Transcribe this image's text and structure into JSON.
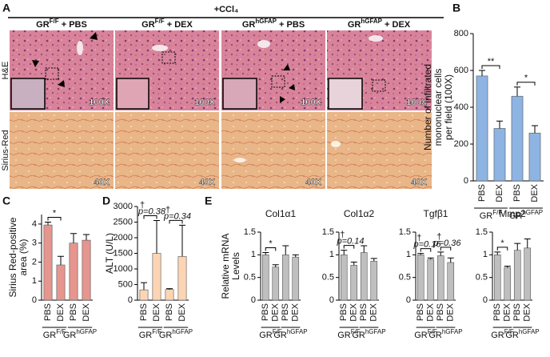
{
  "panels": [
    "A",
    "B",
    "C",
    "D",
    "E"
  ],
  "panel_a": {
    "treatment": "+CCl₄",
    "columns": [
      {
        "base": "GR",
        "sup": "F/F",
        "rest": " + PBS"
      },
      {
        "base": "GR",
        "sup": "F/F",
        "rest": " + DEX"
      },
      {
        "base": "GR",
        "sup": "hGFAP",
        "rest": " + PBS"
      },
      {
        "base": "GR",
        "sup": "hGFAP",
        "rest": " + DEX"
      }
    ],
    "rows": [
      "H&E",
      "Sirius-Red"
    ],
    "magnifications": [
      [
        "100X",
        "100X",
        "100X",
        "100X"
      ],
      [
        "40X",
        "40X",
        "40X",
        "40X"
      ]
    ]
  },
  "chart_data": [
    {
      "type": "bar",
      "ylabel": [
        "Number of infiltrated",
        "mononuclear cells",
        "per field (100X)"
      ],
      "categories": [
        "PBS",
        "DEX",
        "PBS",
        "DEX"
      ],
      "groups": [
        {
          "base": "GR",
          "sup": "F/F"
        },
        {
          "base": "GR",
          "sup": "hGFAP"
        }
      ],
      "values": [
        570,
        285,
        460,
        260
      ],
      "errors": [
        30,
        40,
        50,
        40
      ],
      "color": "#8db4e2",
      "ylim": [
        0,
        800
      ],
      "yticks": [
        0,
        200,
        400,
        600,
        800
      ],
      "annotations": [
        {
          "text": "**"
        },
        {
          "text": "*"
        }
      ]
    },
    {
      "type": "bar",
      "ylabel": [
        "Sirius Red-positive",
        "area (%)"
      ],
      "categories": [
        "PBS",
        "DEX",
        "PBS",
        "DEX"
      ],
      "groups": [
        {
          "base": "GR",
          "sup": "F/F"
        },
        {
          "base": "GR",
          "sup": "hGFAP"
        }
      ],
      "values": [
        3.95,
        1.85,
        3.0,
        3.15
      ],
      "errors": [
        0.15,
        0.45,
        0.5,
        0.3
      ],
      "color": "#e6968e",
      "ylim": [
        0,
        4.5
      ],
      "yticks": [
        0,
        1,
        2,
        3,
        4
      ],
      "annotations": [
        {
          "text": "*"
        },
        null
      ]
    },
    {
      "type": "bar",
      "ylabel": [
        "ALT (U/L)"
      ],
      "categories": [
        "PBS",
        "DEX",
        "PBS",
        "DEX"
      ],
      "groups": [
        {
          "base": "GR",
          "sup": "F/F"
        },
        {
          "base": "GR",
          "sup": "hGFAP"
        }
      ],
      "values": [
        330,
        1500,
        340,
        1400
      ],
      "errors": [
        230,
        1050,
        30,
        1000
      ],
      "color": "#fcd5b4",
      "ylim": [
        0,
        3000
      ],
      "yticks": [
        0,
        500,
        1000,
        1500,
        2000,
        2500,
        3000
      ],
      "annotations": [
        {
          "dagger": "†",
          "p": "p=0.38"
        },
        {
          "dagger": "†",
          "p": "p=0.34"
        }
      ]
    },
    {
      "type": "bar",
      "title": "Col1α1",
      "ylabel": [
        "Relative mRNA",
        "Levels"
      ],
      "categories": [
        "PBS",
        "DEX",
        "PBS",
        "DEX"
      ],
      "groups": [
        {
          "base": "GR",
          "sup": "F/F"
        },
        {
          "base": "GR",
          "sup": "hGFAP"
        }
      ],
      "values": [
        1.0,
        0.73,
        1.0,
        0.95
      ],
      "errors": [
        0.05,
        0.05,
        0.2,
        0.05
      ],
      "color": "#bfbfbf",
      "ylim": [
        0,
        1.5
      ],
      "yticks": [
        0,
        0.5,
        1,
        1.5
      ],
      "annotations": [
        {
          "text": "*"
        },
        null
      ]
    },
    {
      "type": "bar",
      "title": "Col1α2",
      "categories": [
        "PBS",
        "DEX",
        "PBS",
        "DEX"
      ],
      "groups": [
        {
          "base": "GR",
          "sup": "F/F"
        },
        {
          "base": "GR",
          "sup": "hGFAP"
        }
      ],
      "values": [
        1.0,
        0.77,
        1.05,
        0.86
      ],
      "errors": [
        0.1,
        0.07,
        0.15,
        0.06
      ],
      "color": "#bfbfbf",
      "ylim": [
        0,
        1.5
      ],
      "yticks": [
        0,
        0.5,
        1,
        1.5
      ],
      "annotations": [
        {
          "dagger": "†",
          "p": "p=0.14"
        },
        null
      ]
    },
    {
      "type": "bar",
      "title": "Tgfβ1",
      "categories": [
        "PBS",
        "DEX",
        "PBS",
        "DEX"
      ],
      "groups": [
        {
          "base": "GR",
          "sup": "F/F"
        },
        {
          "base": "GR",
          "sup": "hGFAP"
        }
      ],
      "values": [
        1.0,
        0.9,
        0.98,
        0.83
      ],
      "errors": [
        0.03,
        0.03,
        0.08,
        0.1
      ],
      "color": "#bfbfbf",
      "ylim": [
        0,
        1.5
      ],
      "yticks": [
        0,
        0.5,
        1,
        1.5
      ],
      "annotations": [
        {
          "dagger": "†",
          "p": "p=0.16"
        },
        {
          "dagger": "†",
          "p": "p=0.36"
        }
      ]
    },
    {
      "type": "bar",
      "title": "Mmp2",
      "categories": [
        "PBS",
        "DEX",
        "PBS",
        "DEX"
      ],
      "groups": [
        {
          "base": "GR",
          "sup": "F/F"
        },
        {
          "base": "GR",
          "sup": "hGFAP"
        }
      ],
      "values": [
        1.0,
        0.72,
        1.1,
        1.15
      ],
      "errors": [
        0.06,
        0.03,
        0.15,
        0.2
      ],
      "color": "#bfbfbf",
      "ylim": [
        0,
        1.5
      ],
      "yticks": [
        0,
        0.5,
        1,
        1.5
      ],
      "annotations": [
        {
          "text": "*"
        },
        null
      ]
    }
  ]
}
